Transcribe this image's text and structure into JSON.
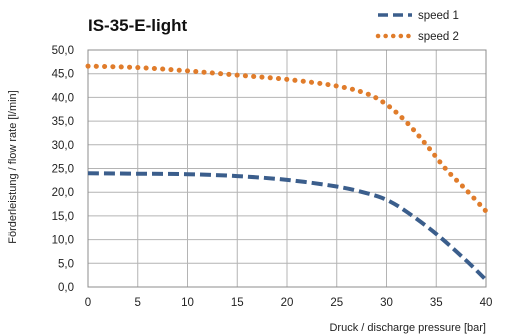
{
  "chart_data": {
    "type": "line",
    "title": "IS-35-E-light",
    "xlabel": "Druck / discharge pressure  [bar]",
    "ylabel": "Förderleistung / flow rate [l/min]",
    "xlim": [
      0,
      40
    ],
    "ylim": [
      0,
      50
    ],
    "x_ticks": [
      "0",
      "5",
      "10",
      "15",
      "20",
      "25",
      "30",
      "35",
      "40"
    ],
    "y_ticks": [
      "0,0",
      "5,0",
      "10,0",
      "15,0",
      "20,0",
      "25,0",
      "30,0",
      "35,0",
      "40,0",
      "45,0",
      "50,0"
    ],
    "grid": true,
    "legend_position": "top-right",
    "series": [
      {
        "name": "speed 1",
        "color": "#3b5e8c",
        "style": "dashed",
        "x": [
          0,
          5,
          10,
          15,
          20,
          25,
          28,
          30,
          32,
          35,
          38,
          40
        ],
        "y": [
          24.0,
          23.9,
          23.8,
          23.4,
          22.6,
          21.2,
          19.8,
          18.4,
          15.9,
          11.2,
          5.6,
          1.5
        ]
      },
      {
        "name": "speed 2",
        "color": "#e07c2b",
        "style": "dotted",
        "x": [
          0,
          5,
          10,
          15,
          20,
          25,
          28,
          30,
          32,
          34,
          36,
          38,
          40
        ],
        "y": [
          46.6,
          46.3,
          45.6,
          44.7,
          43.8,
          42.4,
          40.8,
          38.5,
          34.8,
          30.0,
          24.8,
          20.5,
          16.0
        ]
      }
    ]
  }
}
